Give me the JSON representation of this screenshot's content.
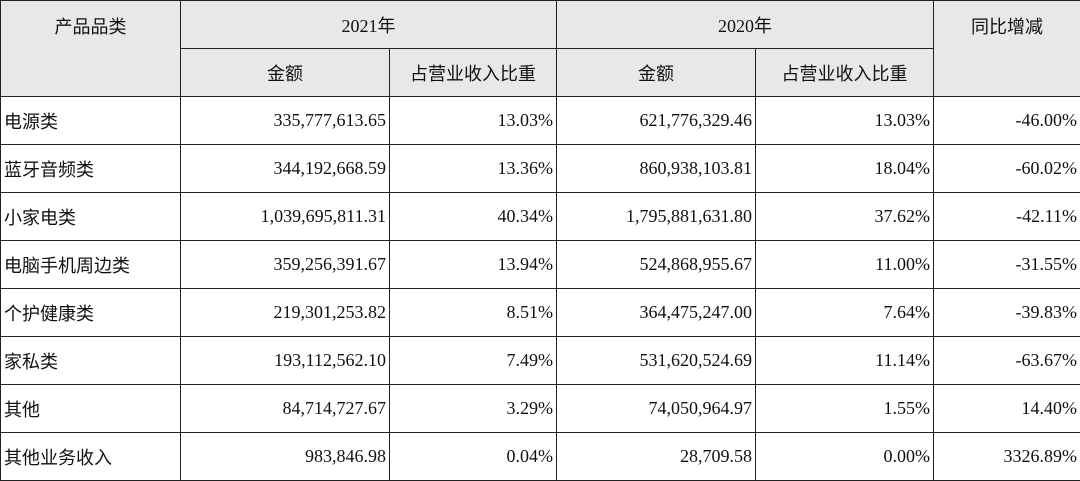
{
  "table": {
    "header": {
      "category": "产品品类",
      "year1": "2021年",
      "year2": "2020年",
      "yoy": "同比增减",
      "sub": [
        "金额",
        "占营业收入比重",
        "金额",
        "占营业收入比重"
      ]
    },
    "rows": [
      [
        "电源类",
        "335,777,613.65",
        "13.03%",
        "621,776,329.46",
        "13.03%",
        "-46.00%"
      ],
      [
        "蓝牙音频类",
        "344,192,668.59",
        "13.36%",
        "860,938,103.81",
        "18.04%",
        "-60.02%"
      ],
      [
        "小家电类",
        "1,039,695,811.31",
        "40.34%",
        "1,795,881,631.80",
        "37.62%",
        "-42.11%"
      ],
      [
        "电脑手机周边类",
        "359,256,391.67",
        "13.94%",
        "524,868,955.67",
        "11.00%",
        "-31.55%"
      ],
      [
        "个护健康类",
        "219,301,253.82",
        "8.51%",
        "364,475,247.00",
        "7.64%",
        "-39.83%"
      ],
      [
        "家私类",
        "193,112,562.10",
        "7.49%",
        "531,620,524.69",
        "11.14%",
        "-63.67%"
      ],
      [
        "其他",
        "84,714,727.67",
        "3.29%",
        "74,050,964.97",
        "1.55%",
        "14.40%"
      ],
      [
        "其他业务收入",
        "983,846.98",
        "0.04%",
        "28,709.58",
        "0.00%",
        "3326.89%"
      ]
    ]
  }
}
